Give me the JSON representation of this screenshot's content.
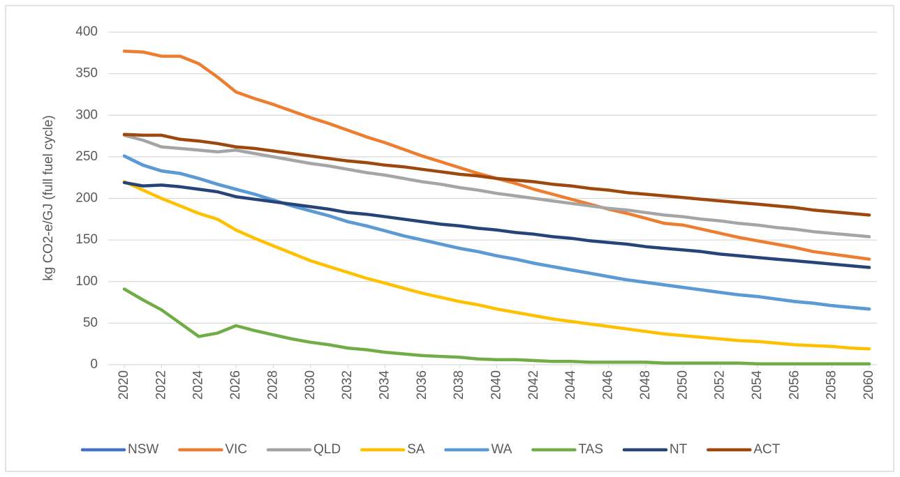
{
  "chart_data": {
    "type": "line",
    "y_label": "kg CO2-e/GJ (full fuel cycle)",
    "x": [
      2020,
      2021,
      2022,
      2023,
      2024,
      2025,
      2026,
      2027,
      2028,
      2029,
      2030,
      2031,
      2032,
      2033,
      2034,
      2035,
      2036,
      2037,
      2038,
      2039,
      2040,
      2041,
      2042,
      2043,
      2044,
      2045,
      2046,
      2047,
      2048,
      2049,
      2050,
      2051,
      2052,
      2053,
      2054,
      2055,
      2056,
      2057,
      2058,
      2059,
      2060
    ],
    "xlim": [
      2020,
      2060
    ],
    "xticks": [
      2020,
      2022,
      2024,
      2026,
      2028,
      2030,
      2032,
      2034,
      2036,
      2038,
      2040,
      2042,
      2044,
      2046,
      2048,
      2050,
      2052,
      2054,
      2056,
      2058,
      2060
    ],
    "ylim": [
      0,
      400
    ],
    "yticks": [
      0,
      50,
      100,
      150,
      200,
      250,
      300,
      350,
      400
    ],
    "grid": true,
    "legend": "bottom",
    "series": [
      {
        "name": "NSW",
        "color": "#4472c4",
        "values": [
          251,
          240,
          233,
          230,
          224,
          217,
          211,
          205,
          198,
          191,
          185,
          179,
          172,
          167,
          161,
          155,
          150,
          145,
          140,
          136,
          131,
          127,
          122,
          118,
          114,
          110,
          106,
          102,
          99,
          96,
          93,
          90,
          87,
          84,
          82,
          79,
          76,
          74,
          71,
          69,
          67
        ]
      },
      {
        "name": "VIC",
        "color": "#ed7d31",
        "values": [
          377,
          376,
          371,
          371,
          362,
          346,
          328,
          320,
          313,
          305,
          297,
          290,
          282,
          274,
          267,
          259,
          251,
          244,
          237,
          230,
          224,
          218,
          211,
          205,
          199,
          193,
          187,
          182,
          176,
          170,
          168,
          163,
          158,
          153,
          149,
          145,
          141,
          136,
          133,
          130,
          127
        ]
      },
      {
        "name": "QLD",
        "color": "#a5a5a5",
        "values": [
          276,
          270,
          262,
          260,
          258,
          256,
          258,
          254,
          250,
          246,
          242,
          239,
          235,
          231,
          228,
          224,
          220,
          217,
          213,
          210,
          206,
          203,
          200,
          197,
          194,
          191,
          188,
          186,
          183,
          180,
          178,
          175,
          173,
          170,
          168,
          165,
          163,
          160,
          158,
          156,
          154
        ]
      },
      {
        "name": "SA",
        "color": "#ffc000",
        "values": [
          220,
          210,
          200,
          191,
          182,
          175,
          162,
          152,
          143,
          134,
          125,
          118,
          111,
          104,
          98,
          92,
          86,
          81,
          76,
          72,
          67,
          63,
          59,
          55,
          52,
          49,
          46,
          43,
          40,
          37,
          35,
          33,
          31,
          29,
          28,
          26,
          24,
          23,
          22,
          20,
          19
        ]
      },
      {
        "name": "WA",
        "color": "#5b9bd5",
        "values": [
          251,
          240,
          233,
          230,
          224,
          217,
          211,
          205,
          198,
          191,
          185,
          179,
          172,
          167,
          161,
          155,
          150,
          145,
          140,
          136,
          131,
          127,
          122,
          118,
          114,
          110,
          106,
          102,
          99,
          96,
          93,
          90,
          87,
          84,
          82,
          79,
          76,
          74,
          71,
          69,
          67
        ]
      },
      {
        "name": "TAS",
        "color": "#70ad47",
        "values": [
          91,
          78,
          66,
          50,
          34,
          38,
          47,
          41,
          36,
          31,
          27,
          24,
          20,
          18,
          15,
          13,
          11,
          10,
          9,
          7,
          6,
          6,
          5,
          4,
          4,
          3,
          3,
          3,
          3,
          2,
          2,
          2,
          2,
          2,
          1,
          1,
          1,
          1,
          1,
          1,
          1
        ]
      },
      {
        "name": "NT",
        "color": "#264478",
        "values": [
          219,
          215,
          216,
          214,
          211,
          208,
          202,
          199,
          196,
          193,
          190,
          187,
          183,
          181,
          178,
          175,
          172,
          169,
          167,
          164,
          162,
          159,
          157,
          154,
          152,
          149,
          147,
          145,
          142,
          140,
          138,
          136,
          133,
          131,
          129,
          127,
          125,
          123,
          121,
          119,
          117
        ]
      },
      {
        "name": "ACT",
        "color": "#9e480e",
        "values": [
          277,
          276,
          276,
          271,
          269,
          266,
          262,
          260,
          257,
          254,
          251,
          248,
          245,
          243,
          240,
          238,
          235,
          232,
          229,
          227,
          224,
          222,
          220,
          217,
          215,
          212,
          210,
          207,
          205,
          203,
          201,
          199,
          197,
          195,
          193,
          191,
          189,
          186,
          184,
          182,
          180
        ]
      }
    ]
  }
}
